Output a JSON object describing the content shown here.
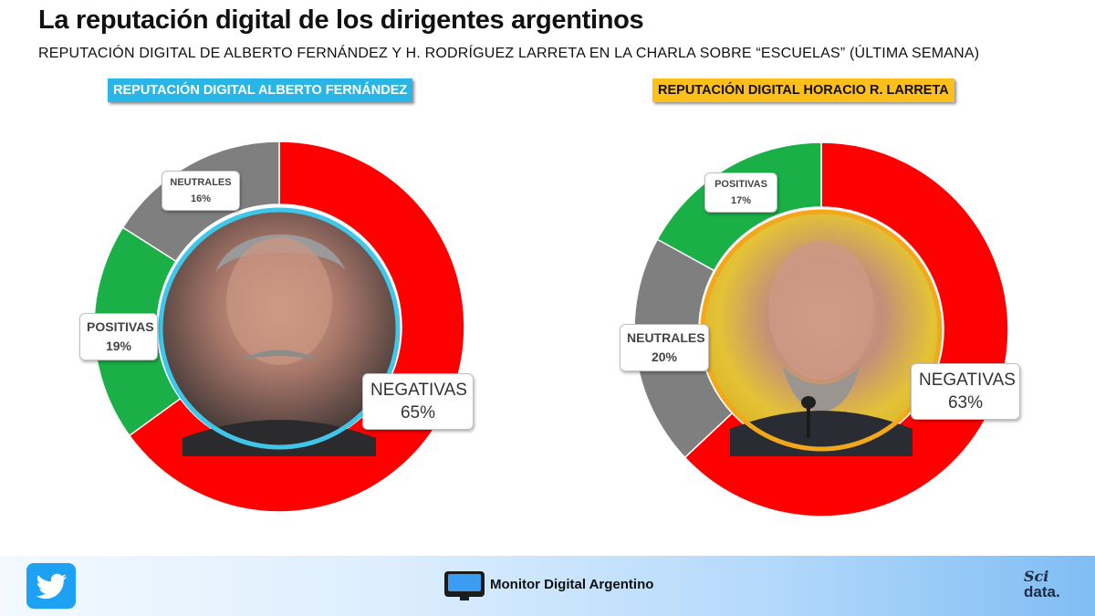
{
  "header": {
    "title": "La reputación digital de los dirigentes argentinos",
    "subtitle": "REPUTACIÓN  DIGITAL  DE  ALBERTO  FERNÁNDEZ  Y  H.  RODRÍGUEZ  LARRETA  EN  LA  CHARLA  SOBRE  “ESCUELAS”  (ÚLTIMA  SEMANA)"
  },
  "colors": {
    "negativas": "#ff0000",
    "positivas": "#1aaf47",
    "neutrales": "#7f7f7f",
    "left_ring": "#3fc3e6",
    "right_ring": "#f2a516"
  },
  "chart_data": [
    {
      "type": "pie",
      "title": "REPUTACIÓN DIGITAL ALBERTO FERNÁNDEZ",
      "categories": [
        "NEGATIVAS",
        "POSITIVAS",
        "NEUTRALES"
      ],
      "values": [
        65,
        19,
        16
      ],
      "labels": [
        "65%",
        "19%",
        "16%"
      ]
    },
    {
      "type": "pie",
      "title": "REPUTACIÓN DIGITAL HORACIO R. LARRETA",
      "categories": [
        "NEGATIVAS",
        "NEUTRALES",
        "POSITIVAS"
      ],
      "values": [
        63,
        20,
        17
      ],
      "labels": [
        "63%",
        "20%",
        "17%"
      ]
    }
  ],
  "footer": {
    "brand": "Monitor Digital Argentino",
    "social_icon": "twitter-icon",
    "logo_line1": "Sci",
    "logo_line2": "data."
  }
}
